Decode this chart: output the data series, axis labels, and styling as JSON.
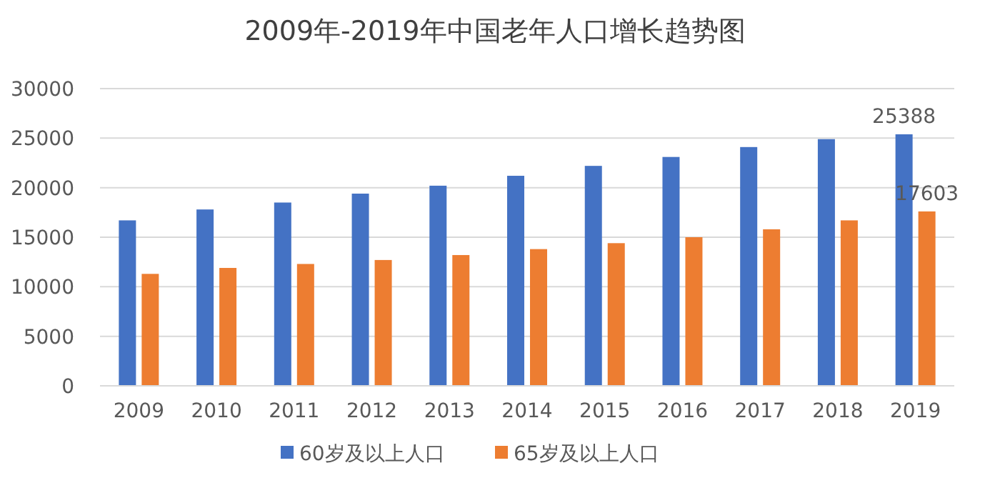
{
  "chart_data": {
    "type": "bar",
    "title": "2009年-2019年中国老年人口增长趋势图",
    "categories": [
      "2009",
      "2010",
      "2011",
      "2012",
      "2013",
      "2014",
      "2015",
      "2016",
      "2017",
      "2018",
      "2019"
    ],
    "series": [
      {
        "name": "60岁及以上人口",
        "color": "#4472c4",
        "values": [
          16700,
          17800,
          18500,
          19400,
          20200,
          21200,
          22200,
          23100,
          24100,
          24900,
          25388
        ],
        "value_labels": [
          null,
          null,
          null,
          null,
          null,
          null,
          null,
          null,
          null,
          null,
          "25388"
        ]
      },
      {
        "name": "65岁及以上人口",
        "color": "#ed7d31",
        "values": [
          11300,
          11900,
          12300,
          12700,
          13200,
          13800,
          14400,
          15000,
          15800,
          16700,
          17603
        ],
        "value_labels": [
          null,
          null,
          null,
          null,
          null,
          null,
          null,
          null,
          null,
          null,
          "17603"
        ]
      }
    ],
    "ylim": [
      0,
      30000
    ],
    "yticks": [
      0,
      5000,
      10000,
      15000,
      20000,
      25000,
      30000
    ],
    "grid": "y",
    "legend": "bottom"
  }
}
